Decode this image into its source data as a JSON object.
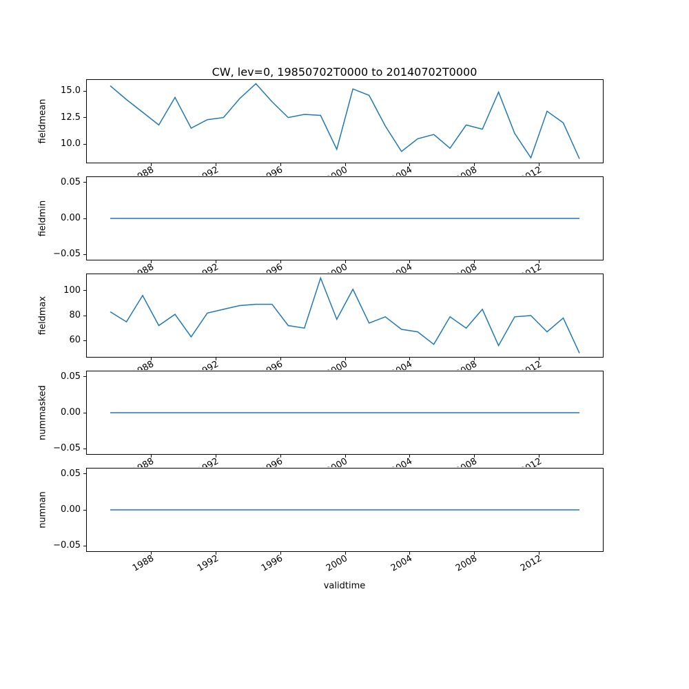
{
  "chart_data": {
    "type": "line",
    "title": "CW, lev=0, 19850702T0000 to 20140702T0000",
    "xlabel": "validtime",
    "line_color": "#1f77b4",
    "grid": false,
    "legend": "none",
    "x": [
      1985.5,
      1986.5,
      1987.5,
      1988.5,
      1989.5,
      1990.5,
      1991.5,
      1992.5,
      1993.5,
      1994.5,
      1995.5,
      1996.5,
      1997.5,
      1998.5,
      1999.5,
      2000.5,
      2001.5,
      2002.5,
      2003.5,
      2004.5,
      2005.5,
      2006.5,
      2007.5,
      2008.5,
      2009.5,
      2010.5,
      2011.5,
      2012.5,
      2013.5,
      2014.5
    ],
    "xlim": [
      1984.05,
      2015.95
    ],
    "xticks": [
      1988,
      1992,
      1996,
      2000,
      2004,
      2008,
      2012
    ],
    "xtick_labels": [
      "1988",
      "1992",
      "1996",
      "2000",
      "2004",
      "2008",
      "2012"
    ],
    "subplots": [
      {
        "name": "fieldmean",
        "ylabel": "fieldmean",
        "values": [
          15.5,
          14.2,
          13.0,
          11.8,
          14.4,
          11.5,
          12.3,
          12.5,
          14.3,
          15.7,
          14.0,
          12.5,
          12.8,
          12.7,
          9.5,
          15.2,
          14.6,
          11.7,
          9.3,
          10.5,
          10.9,
          9.6,
          11.8,
          11.4,
          14.9,
          11.0,
          8.7,
          13.1,
          12.0,
          8.6
        ],
        "ylim": [
          8.245,
          16.055
        ],
        "yticks": [
          10.0,
          12.5,
          15.0
        ],
        "ytick_labels": [
          "10.0",
          "12.5",
          "15.0"
        ]
      },
      {
        "name": "fieldmin",
        "ylabel": "fieldmin",
        "values": [
          0,
          0,
          0,
          0,
          0,
          0,
          0,
          0,
          0,
          0,
          0,
          0,
          0,
          0,
          0,
          0,
          0,
          0,
          0,
          0,
          0,
          0,
          0,
          0,
          0,
          0,
          0,
          0,
          0,
          0
        ],
        "ylim": [
          -0.0575,
          0.0575
        ],
        "yticks": [
          -0.05,
          0.0,
          0.05
        ],
        "ytick_labels": [
          "−0.05",
          "0.00",
          "0.05"
        ]
      },
      {
        "name": "fieldmax",
        "ylabel": "fieldmax",
        "values": [
          83,
          75,
          96,
          72,
          81,
          63,
          82,
          85,
          88,
          89,
          89,
          72,
          70,
          110,
          77,
          101,
          74,
          79,
          69,
          67,
          57,
          79,
          70,
          85,
          56,
          79,
          80,
          67,
          78,
          50
        ],
        "ylim": [
          47,
          113
        ],
        "yticks": [
          60,
          80,
          100
        ],
        "ytick_labels": [
          "60",
          "80",
          "100"
        ]
      },
      {
        "name": "nummasked",
        "ylabel": "nummasked",
        "values": [
          0,
          0,
          0,
          0,
          0,
          0,
          0,
          0,
          0,
          0,
          0,
          0,
          0,
          0,
          0,
          0,
          0,
          0,
          0,
          0,
          0,
          0,
          0,
          0,
          0,
          0,
          0,
          0,
          0,
          0
        ],
        "ylim": [
          -0.0575,
          0.0575
        ],
        "yticks": [
          -0.05,
          0.0,
          0.05
        ],
        "ytick_labels": [
          "−0.05",
          "0.00",
          "0.05"
        ]
      },
      {
        "name": "numnan",
        "ylabel": "numnan",
        "values": [
          0,
          0,
          0,
          0,
          0,
          0,
          0,
          0,
          0,
          0,
          0,
          0,
          0,
          0,
          0,
          0,
          0,
          0,
          0,
          0,
          0,
          0,
          0,
          0,
          0,
          0,
          0,
          0,
          0,
          0
        ],
        "ylim": [
          -0.0575,
          0.0575
        ],
        "yticks": [
          -0.05,
          0.0,
          0.05
        ],
        "ytick_labels": [
          "−0.05",
          "0.00",
          "0.05"
        ]
      }
    ]
  }
}
